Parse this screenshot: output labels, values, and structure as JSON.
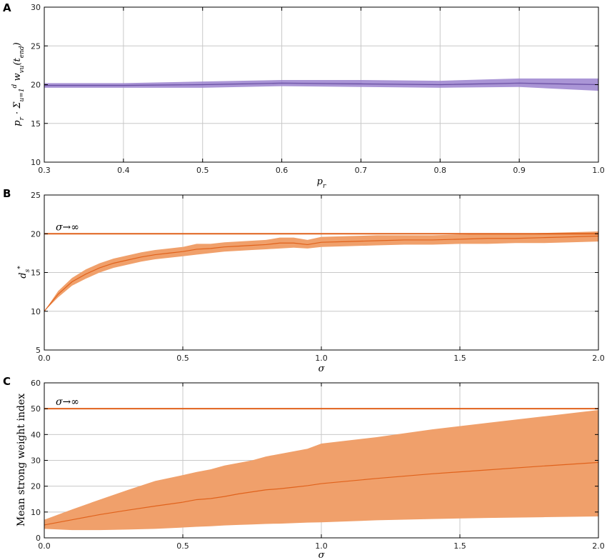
{
  "colors": {
    "purple_line": "#6a4fa3",
    "purple_band": "#9b83cf",
    "orange_line": "#e0621c",
    "orange_band": "#f0a06b",
    "grid": "#c8c8c8"
  },
  "chart_data": [
    {
      "panel": "A",
      "type": "line",
      "xlabel": "p_r",
      "ylabel": "p_r · Σ_{u=1}^{d} w_{vu}(t_end)",
      "xlim": [
        0.3,
        1.0
      ],
      "ylim": [
        10,
        30
      ],
      "xticks": [
        0.3,
        0.4,
        0.5,
        0.6,
        0.7,
        0.8,
        0.9,
        1.0
      ],
      "xtick_labels": [
        "0.3",
        "0.4",
        "0.5",
        "0.6",
        "0.7",
        "0.8",
        "0.9",
        "1.0"
      ],
      "yticks": [
        10,
        15,
        20,
        25,
        30
      ],
      "ytick_labels": [
        "10",
        "15",
        "20",
        "25",
        "30"
      ],
      "grid": true,
      "series": [
        {
          "x": [
            0.3,
            0.4,
            0.5,
            0.6,
            0.7,
            0.8,
            0.9,
            1.0
          ],
          "y": [
            19.9,
            19.9,
            20.0,
            20.2,
            20.1,
            20.0,
            20.2,
            20.0
          ],
          "lower": [
            19.6,
            19.6,
            19.6,
            19.8,
            19.7,
            19.6,
            19.7,
            19.2
          ],
          "upper": [
            20.2,
            20.2,
            20.4,
            20.6,
            20.6,
            20.5,
            20.8,
            20.8
          ]
        }
      ]
    },
    {
      "panel": "B",
      "type": "line",
      "xlabel": "σ",
      "ylabel": "d_s^*",
      "xlim": [
        0.0,
        2.0
      ],
      "ylim": [
        5,
        25
      ],
      "xticks": [
        0.0,
        0.5,
        1.0,
        1.5,
        2.0
      ],
      "xtick_labels": [
        "0.0",
        "0.5",
        "1.0",
        "1.5",
        "2.0"
      ],
      "yticks": [
        5,
        10,
        15,
        20,
        25
      ],
      "ytick_labels": [
        "5",
        "10",
        "15",
        "20",
        "25"
      ],
      "grid": true,
      "reference_line": {
        "y": 20,
        "label": "σ→∞"
      },
      "series": [
        {
          "x": [
            0.0,
            0.05,
            0.1,
            0.15,
            0.2,
            0.25,
            0.3,
            0.35,
            0.4,
            0.45,
            0.5,
            0.55,
            0.6,
            0.65,
            0.7,
            0.75,
            0.8,
            0.85,
            0.9,
            0.95,
            1.0,
            1.1,
            1.2,
            1.3,
            1.4,
            1.5,
            1.6,
            1.7,
            1.8,
            1.9,
            2.0
          ],
          "y": [
            10.0,
            12.2,
            13.8,
            14.8,
            15.6,
            16.2,
            16.6,
            17.0,
            17.3,
            17.5,
            17.7,
            18.0,
            18.1,
            18.3,
            18.4,
            18.5,
            18.6,
            18.8,
            18.8,
            18.6,
            18.9,
            19.0,
            19.1,
            19.2,
            19.2,
            19.3,
            19.4,
            19.4,
            19.5,
            19.6,
            19.7
          ]
        }
      ],
      "band_lower": [
        10.0,
        11.8,
        13.3,
        14.2,
        15.0,
        15.6,
        16.0,
        16.4,
        16.7,
        16.9,
        17.1,
        17.3,
        17.5,
        17.7,
        17.8,
        17.9,
        18.0,
        18.1,
        18.2,
        18.1,
        18.3,
        18.4,
        18.5,
        18.6,
        18.6,
        18.7,
        18.7,
        18.8,
        18.8,
        18.9,
        19.0
      ],
      "band_upper": [
        10.0,
        12.6,
        14.3,
        15.4,
        16.2,
        16.8,
        17.2,
        17.6,
        17.9,
        18.1,
        18.3,
        18.7,
        18.7,
        18.9,
        19.0,
        19.1,
        19.2,
        19.5,
        19.5,
        19.2,
        19.6,
        19.7,
        19.8,
        19.8,
        19.8,
        19.9,
        20.0,
        20.0,
        20.1,
        20.2,
        20.3
      ]
    },
    {
      "panel": "C",
      "type": "line",
      "xlabel": "σ",
      "ylabel": "Mean strong weight index",
      "xlim": [
        0.0,
        2.0
      ],
      "ylim": [
        0,
        60
      ],
      "xticks": [
        0.0,
        0.5,
        1.0,
        1.5,
        2.0
      ],
      "xtick_labels": [
        "0.0",
        "0.5",
        "1.0",
        "1.5",
        "2.0"
      ],
      "yticks": [
        0,
        10,
        20,
        30,
        40,
        50,
        60
      ],
      "ytick_labels": [
        "0",
        "10",
        "20",
        "30",
        "40",
        "50",
        "60"
      ],
      "grid": true,
      "reference_line": {
        "y": 50,
        "label": "σ→∞"
      },
      "series": [
        {
          "x": [
            0.0,
            0.1,
            0.2,
            0.3,
            0.4,
            0.5,
            0.55,
            0.6,
            0.65,
            0.7,
            0.75,
            0.8,
            0.85,
            0.9,
            0.95,
            1.0,
            1.2,
            1.4,
            1.6,
            1.8,
            2.0
          ],
          "y": [
            5.0,
            7.0,
            9.0,
            10.7,
            12.3,
            13.8,
            14.8,
            15.2,
            16.0,
            17.0,
            17.8,
            18.6,
            19.0,
            19.6,
            20.2,
            21.0,
            23.0,
            24.8,
            26.3,
            27.8,
            29.2
          ]
        }
      ],
      "band_lower": [
        3.5,
        3.0,
        3.0,
        3.2,
        3.5,
        4.0,
        4.3,
        4.5,
        4.8,
        5.0,
        5.2,
        5.4,
        5.5,
        5.7,
        5.9,
        6.0,
        6.8,
        7.3,
        7.7,
        8.0,
        8.3
      ],
      "band_upper": [
        7.0,
        11.0,
        14.8,
        18.5,
        22.0,
        24.3,
        25.5,
        26.5,
        28.0,
        29.0,
        30.0,
        31.5,
        32.5,
        33.5,
        34.5,
        36.5,
        39.0,
        42.0,
        44.5,
        47.0,
        49.5
      ]
    }
  ]
}
